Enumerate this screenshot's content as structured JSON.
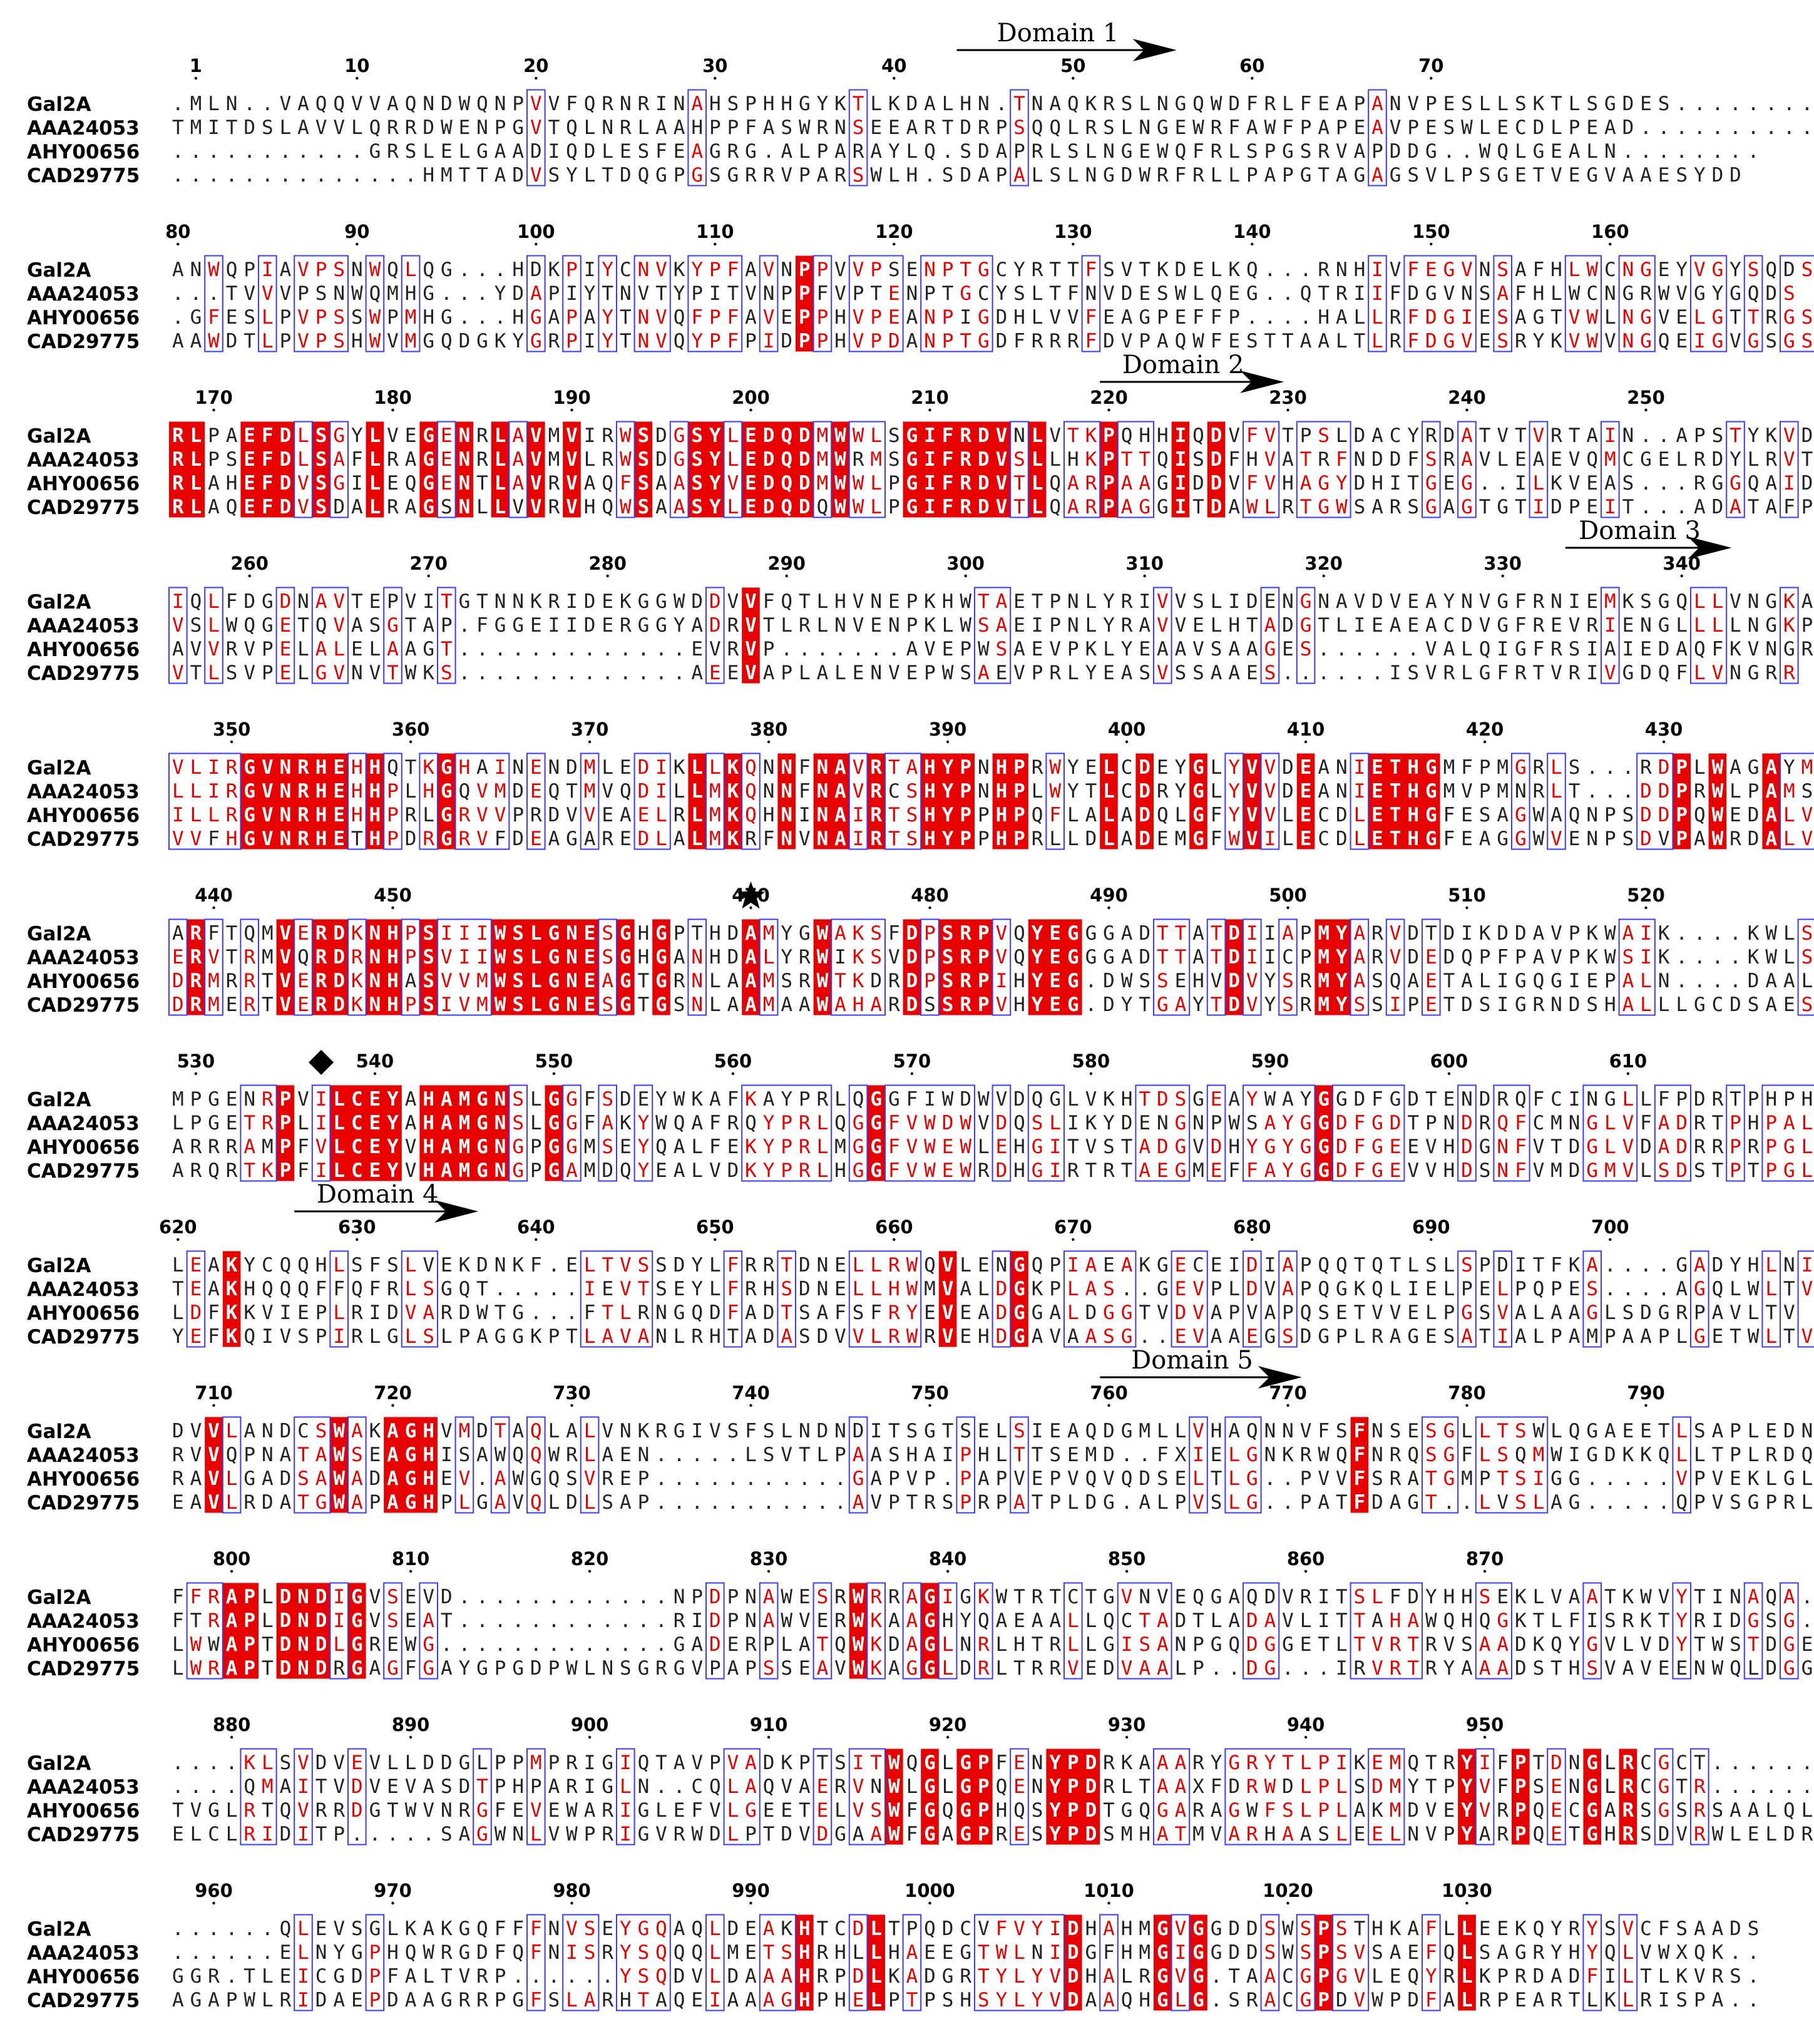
{
  "sequence_names": [
    "Gal2A",
    "AAA24053",
    "AHY00656",
    "CAD29775"
  ],
  "colors": {
    "identical_fill": "#e60000",
    "identical_text": "#ffffff",
    "similar_text": "#e60000",
    "box_stroke": "#3a3aff",
    "plain_text": "#222222"
  },
  "markers": [
    {
      "type": "star-icon",
      "position": 470
    },
    {
      "type": "diamond-icon",
      "position": 537
    }
  ],
  "domains": [
    {
      "label": "Domain 1",
      "start": 44,
      "end": 56
    },
    {
      "label": "Domain 2",
      "start": 220,
      "end": 230
    },
    {
      "label": "Domain 3",
      "start": 334,
      "end": 343
    },
    {
      "label": "Domain 4",
      "start": 627,
      "end": 637
    },
    {
      "label": "Domain 5",
      "start": 760,
      "end": 771
    }
  ],
  "blocks": [
    {
      "start": -1,
      "ticks": [
        1,
        10,
        20,
        30,
        40,
        50,
        60,
        70
      ],
      "rows": [
        ".MLN..VAQQVVAQNDWQNPVVFQRNRINAHSPHHGYKTLKDALHN.TNAQKRSLNGQWDFRLFEAPANVPESLLSKTLSGDES.........",
        "TMITDSLAVVLQRRDWENPGVTQLNRLAAHPPFASWRNSEEARTDRPSQQLRSLNGEWRFAWFPAPEAVPESWLECDLPEAD..........",
        "...........GRSLELGAADIQDLESFEAGRG.ALPARAYLQ.SDAPRLSLNGEWQFRLSPGSRVAPDDG..WQLGEALN........",
        "..............HMTTADVSYLTDQGPGSGRRVPARSWLH.SDAPALSLNGDWRFRLLPAPGTAGAGSVLPSGETVEGVAAESYDD"
      ]
    },
    {
      "start": 79,
      "ticks": [
        80,
        90,
        100,
        110,
        120,
        130,
        140,
        150,
        160
      ],
      "rows": [
        "ANWQPIAVPSNWQLQG...HDKPIYCNVKYPFAVNPPVVPSENPTGCYRTTFSVTKDELKQ...RNHIVFEGVNSAFHLWCNGEYVGYSQDS",
        "...TVVVPSNWQMHG...YDAPIYTNVTYPITVNPPFVPTENPTGCYSLTFNVDESWLQEG..QTRIIFDGVNSAFHLWCNGRWVGYGQDS",
        ".GFESLPVPSSWPMHG...HGAPAYTNVQFPFAVEPPHVPEANPIGDHLVVFEAGPEFFP....HALLRFDGIESAGTVWLNGVELGTTRGS",
        "AAWDTLPVPSHWVMGQDGKYGRPIYTNVQYPFPIDPPHVPDANPTGDFRRRFDVPAQWFESTTAALTLRFDGVESRYKVWVNGQEIGVGSGS"
      ]
    },
    {
      "start": 167,
      "ticks": [
        170,
        180,
        190,
        200,
        210,
        220,
        230,
        240,
        250
      ],
      "rows": [
        "RLPAEFDLSGYLVEGENRLAVMVIRWSDGSYLEDQDMWWLSGIFRDVNLVTKPQHHIQDVFVTPSLDACYRDATVTVRTAIN..APSTYKVD",
        "RLPSEFDLSAFLRAGENRLAVMVLRWSDGSYLEDQDMWRMSGIFRDVSLLHKPTTQISDFHVATRFNDDFSRAVLEAEVQMCGELRDYLRVT",
        "RLAHEFDVSGILEQGENTLAVRVAQFSAASYVEDQDMWWLPGIFRDVTLQARPAAGIDDVFVHAGYDHITGEG..ILKVEAS...RGGQAID",
        "RLAQEFDVSDALRAGSNLLVVRVHQWSAASYLEDQDQWWLPGIFRDVTLQARPAGGITDAWLRTGWSARSGAGTGTIDPEIT...ADATAFP"
      ]
    },
    {
      "start": 255,
      "ticks": [
        260,
        270,
        280,
        290,
        300,
        310,
        320,
        330,
        340
      ],
      "rows": [
        "IQLFDGDNAVTEPVITGTNNKRIDEKGGWDDVVFQTLHVNEPKHWTAETPNLYRIVVSLIDENGNAVDVEAYNVGFRNIEMKSGQLLVNGKA",
        "VSLWQGETQVASGTAP.FGGEIIDERGGYADRVTLRLNVENPKLWSAEIPNLYRAVVELHTADGTLIEAEACDVGFREVRIENGLLLLNGKP",
        "AVVRVPELALELAAGT.............EVRVP.......AVEPWSAEVPKLYEAAVSAAGES......VALQIGFRSIAIEDAQFKVNGRR",
        "VTLSVPELGVNVTWKS.............AEEVAPLALENVEPWSAEVPRLYEASVSSAAES......ISVRLGFRTVRIVGDQFLVNGRR"
      ]
    },
    {
      "start": 346,
      "ticks": [
        350,
        360,
        370,
        380,
        390,
        400,
        410,
        420,
        430
      ],
      "rows": [
        "VLIRGVNRHEHHQTKGHAINENDMLEDIKLLKQNNFNAVRTAHYPNHPRWYELCDEYGLYVVDEANIETHGMFPMGRLS...RDPLWAGAYM",
        "LLIRGVNRHEHHPLHGQVMDEQTMVQDILLMKQNNFNAVRCSHYPNHPLWYTLCDRYGLYVVDEANIETHGMVPMNRLT...DDPRWLPAMS",
        "ILLRGVNRHEHHPRLGRVVPRDVVEAELRLMKQHNINAIRTSHYPPHPQFLALADQLGFYVVLECDLETHGFESAGWAQNPSDDPQWEDALV",
        "VVFHGVNRHETHPDRGRVFDEAGAREDLALMKRFNVNAIRTSHYPPHPRLLDLADEMGFWVILECDLETHGFEAGGWVENPSDVPAWRDALV"
      ]
    },
    {
      "start": 437,
      "ticks": [
        440,
        450,
        470,
        480,
        490,
        500,
        510,
        520
      ],
      "rows": [
        "ARFTQMVERDKNHPSIIIWSLGNESGHGPTHDAMYGWAKSFDPSRPVQYEGGGADTTATDIIAPMYARVDTDIKDDAVPKWAIK....KWLS",
        "ERVTRMVQRDRNHPSVIIWSLGNESGHGANHDALYRWIKSVDPSRPVQYEGGGADTTATDIICPMYARVDEDQPFPAVPKWSIK....KWLS",
        "DRMRRTVERDKNHASVVMWSLGNEAGTGRNLAAMSRWTKDRDPSRPIHYEG.DWSSEHVDVYSRMYASQAETALIGQGIEPALN....DAALD",
        "DRMERTVERDKNHPSIVMWSLGNESGTGSNLAAMAAWAHARDSSRPVHYEG.DYTGAYTDVYSRMYSSIPETDSIGRNDSHALLLGCDSAES"
      ]
    },
    {
      "start": 528,
      "ticks": [
        530,
        540,
        550,
        560,
        570,
        580,
        590,
        600,
        610
      ],
      "rows": [
        "MPGENRPVILCEYAHAMGNSLGGFSDEYWKAFKAYPRLQGGFIWDWVDQGLVKHTDSGEAYWAYGGDFGDTENDRQFCINGLLFPDRTPHPHL",
        "LPGETRPLILCEYAHAMGNSLGGFAKYWQAFRQYPRLQGGFVWDWVDQSLIKYDENGNPWSAYGGDFGDTPNDRQFCMNGLVFADRTPHPAL",
        "ARRRAMPFVLCEYVHAMGNGPGGMSEYQALFEKYPRLMGGFVWEWLEHGITVSTADGVDHYGYGGDFGEEVHDGNFVTDGLVDADRRPRPGL",
        "ARQRTKPFILCEYVHAMGNGPGAMDQYEALVDKYPRLHGGFVWEWRDHGIRTRTAEGMEFFAYGGDFGEVVHDSNFVMDGMVLSDSTPTPGL"
      ]
    },
    {
      "start": 619,
      "ticks": [
        620,
        630,
        640,
        650,
        660,
        670,
        680,
        690,
        700
      ],
      "rows": [
        "LEAKYCQQHLSFSLVEKDNKF.ELTVSSDYLFRRTDNELLRWQVLENGQPIAEAKGECEIDIAPQQTQTLSLSPDITFKA....GADYHLNI",
        "TEAKHQQQFFQFRLSGQT.....IEVTSEYLFRHSDNELLHWMVALDGKPLAS..GEVPLDVAPQGKQLIELPELPQPES....AGQLWLTV",
        "LDFKKVIEPLRIDVARDWTG...FTLRNGQDFADTSAFSFRYEVEADGGALDGGTVDVAPVAPQSETVVELPGSVALAAGLSDGRPAVLTV",
        "YEFKQIVSPIRLGLSLPAGGKPTLAVANLRHTADASDVVLRWRVEHDGAVAASG..EVAAEGSDGPLRAGESATIALPAMPAAPLGETWLTV"
      ]
    },
    {
      "start": 707,
      "ticks": [
        710,
        720,
        730,
        740,
        750,
        760,
        770,
        780,
        790
      ],
      "rows": [
        "DVVLANDCSWAKAGHVMDTAQLALVNKRGIVSFSLNDNDITSGTSELSIEAQDGMLLVHAQNNVFSFNSESGLLTSWLQGAEETLSAPLEDN",
        "RVVQPNATAWSEAGHISAWQQWRLAEN.....LSVTLPAASHAIPHLTTSEMD..FXIELGNKRWQFNRQSGFLSQMWIGDKKQLLTPLRDQ",
        "RAVLGADSAWADAGHEV.AWGQSVREP...........GAPVP.PAPVEPVQVQDSELTLG..PVVFSRATGMPTSIGG.....VPVEKLGLT",
        "EAVLRDATGWAPAGHPLGAVQLDLSAP...........AVPTRSPRPATPLDG.ALPVSLG..PATFDAGT..LVSLAG.....QPVSGPRLE"
      ]
    },
    {
      "start": 796,
      "ticks": [
        800,
        810,
        820,
        830,
        840,
        850,
        860,
        870
      ],
      "rows": [
        "FFRAPLDNDIGVSEVD............NPDPNAWESRWRRAGIGKWTRTCTGVNVEQGAQDVRITSLFDYHHSEKLVAATKWVYTINAQA.",
        "FTRAPLDNDIGVSEAT............RIDPNAWVERWKAAGHYQAEAALLQCTADTLADAVLITTAHAWQHQGKTLFISRKTYRIDGSG.",
        "LWWAPTDNDLGREWG.............GADERPLATQWKDAGLNRLHTRLLGISANPGQDGGETLTVRTRVSAADKQYGVLVDYTWSTDGE",
        "LWRAPTDNDRGAGFGAYGPGDPWLNSGRGVPAPSSEAVWKAGGLDRLTRRVEDVAALP..DG...IRVRTRYAAADSTHSVAVEENWQLDGG"
      ]
    },
    {
      "start": 876,
      "ticks": [
        880,
        890,
        900,
        910,
        920,
        930,
        940,
        950
      ],
      "rows": [
        "....KLSVDVEVLLDDGLPPMPRIGIQTAVPVADKPTSITWQGLGPFENYPDRKAAARYGRYTLPIKEMQTRYIFPTDNGLRCGCT......",
        "....QMAITVDVEVASDTPHPARIGLN..CQLAQVAERVNWLGLGPQENYPDRLTAAXFDRWDLPLSDMYTPYVFPSENGLRCGTR......",
        "TVGLRTQVRRDGTWVNRGFEVEWARIGLEFVLGEETELVSWFGQGPHQSYPDTGQGARAGWFSLPLAKMDVEYVRPQECGARSGSRSAALQL",
        "ELCLRIDITP.....SAGWNLVWPRIGVRWDLPTDVDGAAWFGAGPRESYPDSMHATMVARHAASLEELNVPYARPQETGHRSDVRWLELDR"
      ]
    },
    {
      "start": 957,
      "ticks": [
        960,
        970,
        980,
        990,
        1000,
        1010,
        1020,
        1030
      ],
      "rows": [
        "......QLEVSGLKAKGQFFFNVSEYGQAQLDEAKHTCDLTPQDCVFVYIDHAHMGVGGDDSWSPSTHKAFLLEEKQYRYSVCFSAADS",
        "......ELNYGPHQWRGDFQFNISRYSQQQLMETSHRHLLHAEEGTWLNIDGFHMGIGGDDSWSPSVSAEFQLSAGRYHYQLVWXQK..",
        "GGR.TLEICGDPFALTVRP......YSQDVLDAAAHRPDLKADGRTYLYVDHALRGVG.TAACGPGVLEQYRLKPRDADFILTLKVRS.",
        "AGAPWLRIDAEPDAAGRRPGFSLARHTAQEIAAAGHPHELPTPSHSYLYVDAAQHGLG.SRACGPDVWPDFALRPEARTLKLRISPA.."
      ]
    }
  ]
}
